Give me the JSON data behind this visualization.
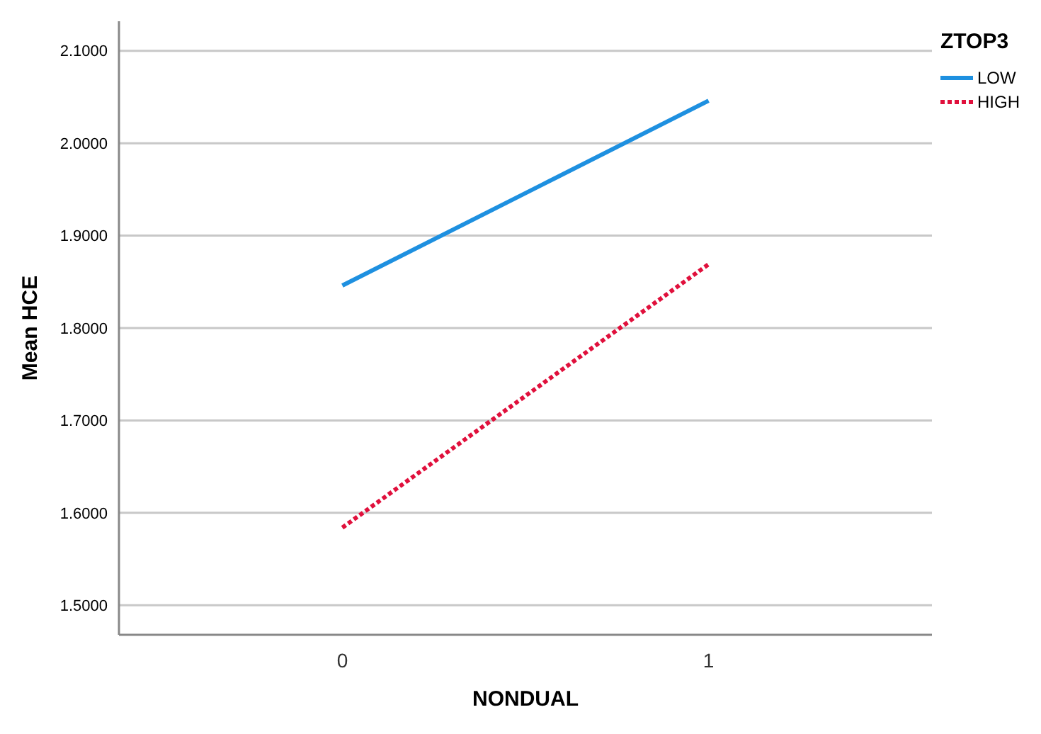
{
  "chart_data": {
    "type": "line",
    "xlabel": "NONDUAL",
    "ylabel": "Mean HCE",
    "legend_title": "ZTOP3",
    "categories": [
      "0",
      "1"
    ],
    "series": [
      {
        "name": "LOW",
        "color": "#1e90e0",
        "values": [
          1.846,
          2.046
        ],
        "line_style": "solid"
      },
      {
        "name": "HIGH",
        "color": "#e0103c",
        "values": [
          1.584,
          1.869
        ],
        "line_style": "dotted"
      }
    ],
    "ylim": [
      1.468,
      2.132
    ],
    "yticks": [
      {
        "value": 1.5,
        "label": "1.5000"
      },
      {
        "value": 1.6,
        "label": "1.6000"
      },
      {
        "value": 1.7,
        "label": "1.7000"
      },
      {
        "value": 1.8,
        "label": "1.8000"
      },
      {
        "value": 1.9,
        "label": "1.9000"
      },
      {
        "value": 2.0,
        "label": "2.0000"
      },
      {
        "value": 2.1,
        "label": "2.1000"
      }
    ],
    "grid": "y",
    "legend": "top right",
    "marker": "none"
  }
}
